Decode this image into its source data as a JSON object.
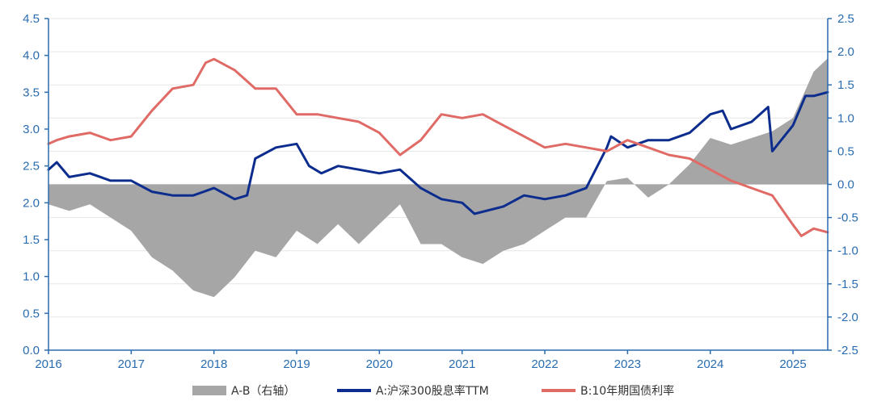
{
  "chart_data": {
    "type": "line",
    "title": "",
    "x_ticks": [
      "2016",
      "2017",
      "2018",
      "2019",
      "2020",
      "2021",
      "2022",
      "2023",
      "2024",
      "2025"
    ],
    "x_range": [
      2016.0,
      2025.42
    ],
    "y_left": {
      "range": [
        0.0,
        4.5
      ],
      "ticks": [
        "0.0",
        "0.5",
        "1.0",
        "1.5",
        "2.0",
        "2.5",
        "3.0",
        "3.5",
        "4.0",
        "4.5"
      ]
    },
    "y_right": {
      "range": [
        -2.5,
        2.5
      ],
      "ticks": [
        "-2.5",
        "-2.0",
        "-1.5",
        "-1.0",
        "-0.5",
        "0.0",
        "0.5",
        "1.0",
        "1.5",
        "2.0",
        "2.5"
      ]
    },
    "grid": true,
    "legend_position": "bottom",
    "colors": {
      "A-B": "#a6a6a6",
      "A": "#0d2d8e",
      "B": "#e06b66",
      "axis": "#2a6cb0",
      "grid": "#e6e6e6"
    },
    "series": [
      {
        "name": "A-B（右轴）",
        "type": "area",
        "axis": "right",
        "x": [
          2016.0,
          2016.25,
          2016.5,
          2016.75,
          2017.0,
          2017.25,
          2017.5,
          2017.75,
          2018.0,
          2018.25,
          2018.5,
          2018.75,
          2019.0,
          2019.25,
          2019.5,
          2019.75,
          2020.0,
          2020.25,
          2020.5,
          2020.75,
          2021.0,
          2021.25,
          2021.5,
          2021.75,
          2022.0,
          2022.25,
          2022.5,
          2022.75,
          2023.0,
          2023.25,
          2023.5,
          2023.75,
          2024.0,
          2024.25,
          2024.5,
          2024.75,
          2025.0,
          2025.25,
          2025.42
        ],
        "values": [
          -0.3,
          -0.4,
          -0.3,
          -0.5,
          -0.7,
          -1.1,
          -1.3,
          -1.6,
          -1.7,
          -1.4,
          -1.0,
          -1.1,
          -0.7,
          -0.9,
          -0.6,
          -0.9,
          -0.6,
          -0.3,
          -0.9,
          -0.9,
          -1.1,
          -1.2,
          -1.0,
          -0.9,
          -0.7,
          -0.5,
          -0.5,
          0.05,
          0.1,
          -0.2,
          0.0,
          0.3,
          0.7,
          0.6,
          0.7,
          0.8,
          1.0,
          1.7,
          1.9
        ]
      },
      {
        "name": "A:沪深300股息率TTM",
        "type": "line",
        "axis": "left",
        "x": [
          2016.0,
          2016.1,
          2016.25,
          2016.5,
          2016.75,
          2017.0,
          2017.25,
          2017.5,
          2017.75,
          2018.0,
          2018.25,
          2018.4,
          2018.5,
          2018.75,
          2019.0,
          2019.15,
          2019.3,
          2019.5,
          2019.75,
          2020.0,
          2020.25,
          2020.5,
          2020.75,
          2021.0,
          2021.15,
          2021.5,
          2021.75,
          2022.0,
          2022.25,
          2022.5,
          2022.75,
          2022.8,
          2023.0,
          2023.25,
          2023.5,
          2023.75,
          2024.0,
          2024.15,
          2024.25,
          2024.5,
          2024.7,
          2024.75,
          2025.0,
          2025.15,
          2025.25,
          2025.42
        ],
        "values": [
          2.45,
          2.55,
          2.35,
          2.4,
          2.3,
          2.3,
          2.15,
          2.1,
          2.1,
          2.2,
          2.05,
          2.1,
          2.6,
          2.75,
          2.8,
          2.5,
          2.4,
          2.5,
          2.45,
          2.4,
          2.45,
          2.2,
          2.05,
          2.0,
          1.85,
          1.95,
          2.1,
          2.05,
          2.1,
          2.2,
          2.75,
          2.9,
          2.75,
          2.85,
          2.85,
          2.95,
          3.2,
          3.25,
          3.0,
          3.1,
          3.3,
          2.7,
          3.05,
          3.45,
          3.45,
          3.5
        ]
      },
      {
        "name": "B:10年期国债利率",
        "type": "line",
        "axis": "left",
        "x": [
          2016.0,
          2016.1,
          2016.25,
          2016.5,
          2016.75,
          2017.0,
          2017.25,
          2017.5,
          2017.75,
          2017.9,
          2018.0,
          2018.25,
          2018.5,
          2018.75,
          2019.0,
          2019.25,
          2019.5,
          2019.75,
          2020.0,
          2020.25,
          2020.5,
          2020.75,
          2021.0,
          2021.25,
          2021.5,
          2021.75,
          2022.0,
          2022.25,
          2022.5,
          2022.75,
          2023.0,
          2023.25,
          2023.5,
          2023.75,
          2024.0,
          2024.25,
          2024.5,
          2024.75,
          2025.0,
          2025.1,
          2025.25,
          2025.42
        ],
        "values": [
          2.8,
          2.85,
          2.9,
          2.95,
          2.85,
          2.9,
          3.25,
          3.55,
          3.6,
          3.9,
          3.95,
          3.8,
          3.55,
          3.55,
          3.2,
          3.2,
          3.15,
          3.1,
          2.95,
          2.65,
          2.85,
          3.2,
          3.15,
          3.2,
          3.05,
          2.9,
          2.75,
          2.8,
          2.75,
          2.7,
          2.85,
          2.75,
          2.65,
          2.6,
          2.45,
          2.3,
          2.2,
          2.1,
          1.7,
          1.55,
          1.65,
          1.6
        ]
      }
    ]
  }
}
